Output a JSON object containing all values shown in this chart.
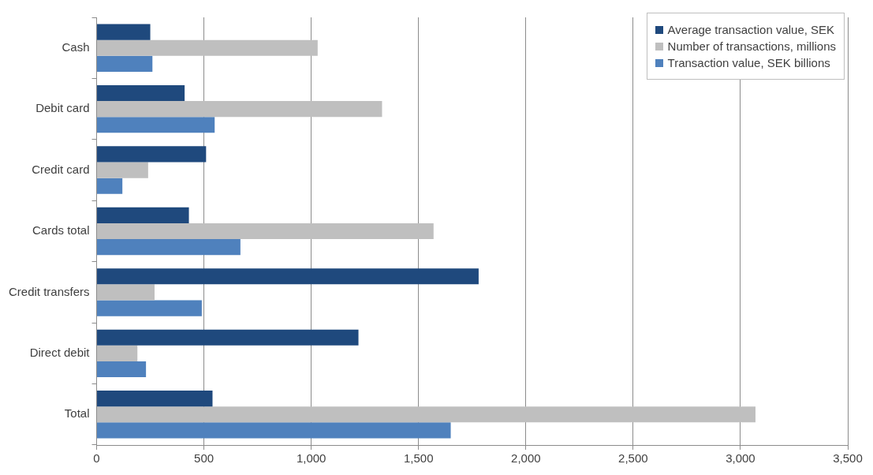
{
  "chart_data": {
    "type": "bar",
    "orientation": "horizontal",
    "categories": [
      "Cash",
      "Debit card",
      "Credit card",
      "Cards total",
      "Credit transfers",
      "Direct debit",
      "Total"
    ],
    "series": [
      {
        "name": "Average transaction value, SEK",
        "color": "#1f497d",
        "values": [
          250,
          410,
          510,
          430,
          1780,
          1220,
          540
        ]
      },
      {
        "name": "Number of transactions, millions",
        "color": "#bfbfbf",
        "values": [
          1030,
          1330,
          240,
          1570,
          270,
          190,
          3070
        ]
      },
      {
        "name": "Transaction value, SEK billions",
        "color": "#4f81bd",
        "values": [
          260,
          550,
          120,
          670,
          490,
          230,
          1650
        ]
      }
    ],
    "xlim": [
      0,
      3500
    ],
    "xticks": [
      0,
      500,
      {
        "value": 1000,
        "label": "1,000"
      },
      {
        "value": 1500,
        "label": "1,500"
      },
      {
        "value": 2000,
        "label": "2,000"
      },
      {
        "value": 2500,
        "label": "2,500"
      },
      {
        "value": 3000,
        "label": "3,000"
      },
      {
        "value": 3500,
        "label": "3,500"
      }
    ],
    "grid": "x",
    "legend": "top right"
  }
}
